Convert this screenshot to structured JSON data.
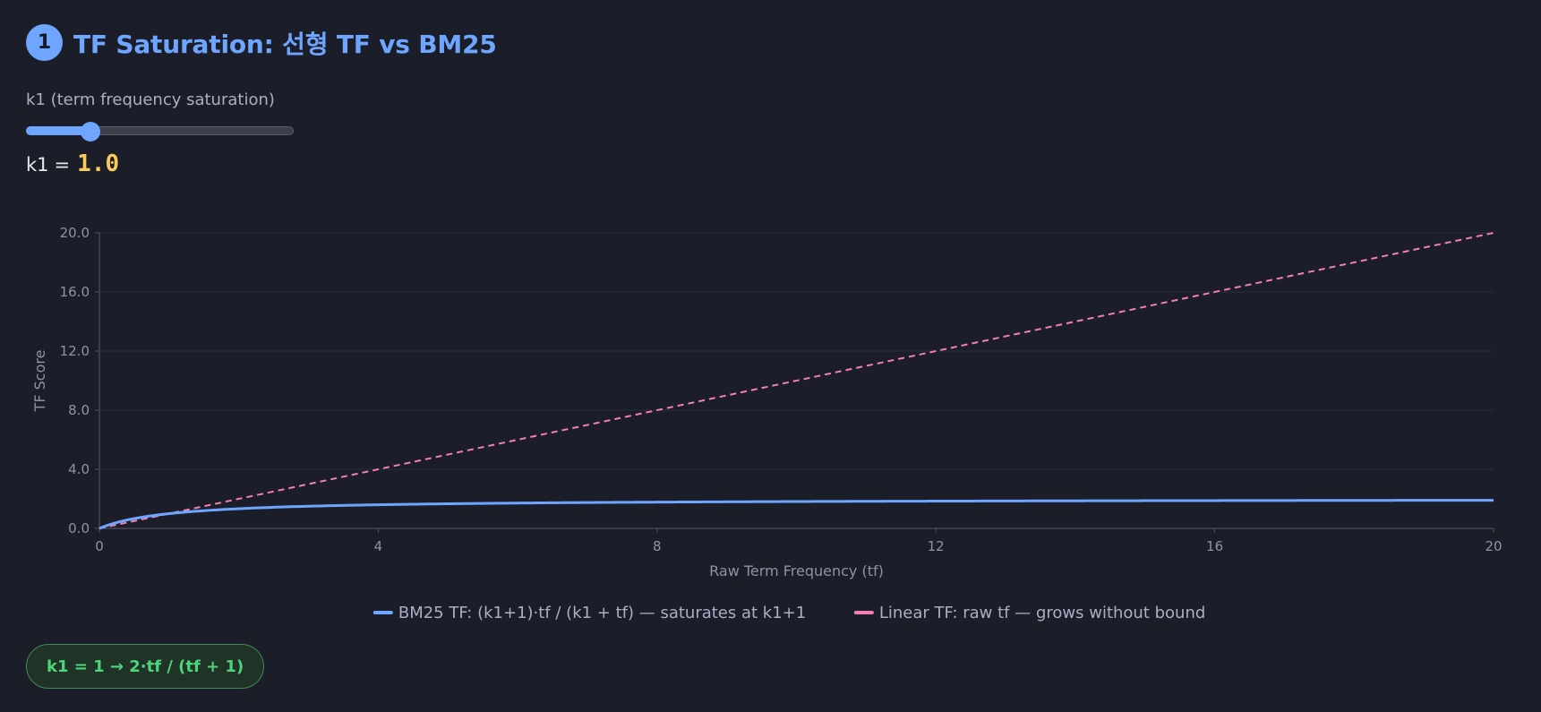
{
  "header": {
    "step_number": "1",
    "title": "TF Saturation: 선형 TF vs BM25"
  },
  "slider": {
    "label": "k1 (term frequency saturation)",
    "name": "k1",
    "value_text": "1.0",
    "value": 1.0,
    "fraction": 0.22,
    "accent": "#6ea6ff",
    "value_color": "#f8cc5a"
  },
  "chart_data": {
    "type": "line",
    "xlabel": "Raw Term Frequency (tf)",
    "ylabel": "TF Score",
    "xlim": [
      0,
      20
    ],
    "ylim": [
      0,
      20
    ],
    "x_ticks": [
      "0",
      "4",
      "8",
      "12",
      "16",
      "20"
    ],
    "x_tick_values": [
      0,
      4,
      8,
      12,
      16,
      20
    ],
    "y_ticks": [
      "0.0",
      "4.0",
      "8.0",
      "12.0",
      "16.0",
      "20.0"
    ],
    "y_tick_values": [
      0,
      4,
      8,
      12,
      16,
      20
    ],
    "grid": true,
    "legend_position": "bottom-center",
    "k1": 1.0,
    "series": [
      {
        "name": "BM25 TF: (k1+1)·tf / (k1 + tf) — saturates at k1+1",
        "color": "#6ea6ff",
        "style": "solid",
        "formula": "bm25",
        "x": [
          0,
          0.25,
          0.5,
          0.75,
          1,
          1.5,
          2,
          3,
          4,
          5,
          6,
          8,
          10,
          12,
          14,
          16,
          18,
          20
        ],
        "values": [
          0,
          0.4,
          0.67,
          0.86,
          1.0,
          1.2,
          1.33,
          1.5,
          1.6,
          1.67,
          1.71,
          1.78,
          1.82,
          1.85,
          1.87,
          1.88,
          1.89,
          1.9
        ]
      },
      {
        "name": "Linear TF: raw tf — grows without bound",
        "color": "#f47fb2",
        "style": "dashed",
        "formula": "linear",
        "x": [
          0,
          20
        ],
        "values": [
          0,
          20
        ]
      }
    ]
  },
  "formula_pill": {
    "text": "k1 = 1 → 2·tf / (tf + 1)",
    "color": "#4ed47a"
  }
}
